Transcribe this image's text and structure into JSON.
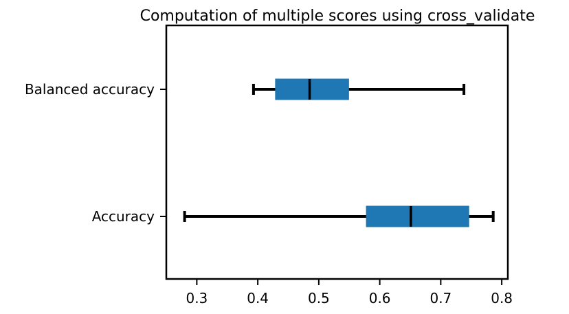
{
  "chart_data": {
    "type": "boxplot",
    "orientation": "horizontal",
    "title": "Computation of multiple scores using cross_validate",
    "xlabel": "",
    "ylabel": "",
    "xlim": [
      0.25,
      0.81
    ],
    "x_ticks": [
      0.3,
      0.4,
      0.5,
      0.6,
      0.7,
      0.8
    ],
    "x_tick_labels": [
      "0.3",
      "0.4",
      "0.5",
      "0.6",
      "0.7",
      "0.8"
    ],
    "categories": [
      "Accuracy",
      "Balanced accuracy"
    ],
    "boxes": [
      {
        "category": "Accuracy",
        "whisker_low": 0.28,
        "q1": 0.578,
        "median": 0.651,
        "q3": 0.746,
        "whisker_high": 0.786
      },
      {
        "category": "Balanced accuracy",
        "whisker_low": 0.393,
        "q1": 0.429,
        "median": 0.485,
        "q3": 0.549,
        "whisker_high": 0.738
      }
    ],
    "grid": false,
    "legend": "none"
  },
  "colors": {
    "box_fill": "#1f77b4",
    "lines": "#000000",
    "background": "#ffffff"
  }
}
